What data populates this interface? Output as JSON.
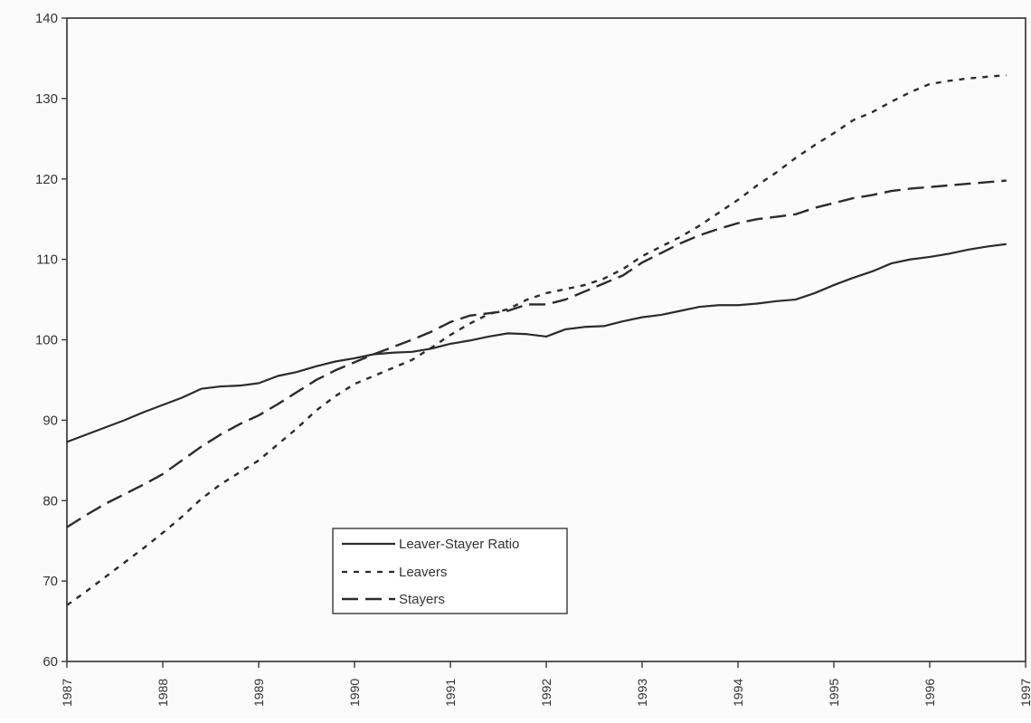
{
  "chart_data": {
    "type": "line",
    "title": "",
    "xlabel": "",
    "ylabel": "",
    "xlim": [
      1987,
      1997
    ],
    "ylim": [
      60,
      140
    ],
    "y_ticks": [
      60,
      70,
      80,
      90,
      100,
      110,
      120,
      130,
      140
    ],
    "x_ticks": [
      "1987",
      "1988",
      "1989",
      "1990",
      "1991",
      "1992",
      "1993",
      "1994",
      "1995",
      "1996",
      "1997"
    ],
    "x_tick_values": [
      1987,
      1988,
      1989,
      1990,
      1991,
      1992,
      1993,
      1994,
      1995,
      1996,
      1997
    ],
    "grid": false,
    "legend_position": "lower-center-left",
    "series": [
      {
        "name": "Leaver-Stayer Ratio",
        "style": "solid",
        "color": "#2b2b2b",
        "x": [
          1987.0,
          1987.2,
          1987.4,
          1987.6,
          1987.8,
          1988.0,
          1988.2,
          1988.4,
          1988.6,
          1988.8,
          1989.0,
          1989.2,
          1989.4,
          1989.6,
          1989.8,
          1990.0,
          1990.2,
          1990.4,
          1990.6,
          1990.8,
          1991.0,
          1991.2,
          1991.4,
          1991.6,
          1991.8,
          1992.0,
          1992.2,
          1992.4,
          1992.6,
          1992.8,
          1993.0,
          1993.2,
          1993.4,
          1993.6,
          1993.8,
          1994.0,
          1994.2,
          1994.4,
          1994.6,
          1994.8,
          1995.0,
          1995.2,
          1995.4,
          1995.6,
          1995.8,
          1996.0,
          1996.2,
          1996.4,
          1996.6,
          1996.8
        ],
        "values": [
          87.3,
          88.2,
          89.1,
          90.0,
          91.0,
          91.9,
          92.8,
          93.9,
          94.2,
          94.3,
          94.6,
          95.5,
          96.0,
          96.7,
          97.3,
          97.7,
          98.2,
          98.4,
          98.5,
          98.9,
          99.5,
          99.9,
          100.4,
          100.8,
          100.7,
          100.4,
          101.3,
          101.6,
          101.7,
          102.3,
          102.8,
          103.1,
          103.6,
          104.1,
          104.3,
          104.3,
          104.5,
          104.8,
          105.0,
          105.8,
          106.8,
          107.7,
          108.5,
          109.5,
          110.0,
          110.3,
          110.7,
          111.2,
          111.6,
          111.9
        ],
        "x_trim": [
          1996.95
        ]
      },
      {
        "name": "Leavers",
        "style": "dotted",
        "color": "#2b2b2b",
        "x": [
          1987.0,
          1987.2,
          1987.4,
          1987.6,
          1987.8,
          1988.0,
          1988.2,
          1988.4,
          1988.6,
          1988.8,
          1989.0,
          1989.2,
          1989.4,
          1989.6,
          1989.8,
          1990.0,
          1990.2,
          1990.4,
          1990.6,
          1990.8,
          1991.0,
          1991.2,
          1991.4,
          1991.6,
          1991.8,
          1992.0,
          1992.2,
          1992.4,
          1992.6,
          1992.8,
          1993.0,
          1993.2,
          1993.4,
          1993.6,
          1993.8,
          1994.0,
          1994.2,
          1994.4,
          1994.6,
          1994.8,
          1995.0,
          1995.2,
          1995.4,
          1995.6,
          1995.8,
          1996.0,
          1996.2,
          1996.4,
          1996.6,
          1996.8
        ],
        "values": [
          67.0,
          68.7,
          70.5,
          72.3,
          74.1,
          76.0,
          78.0,
          80.2,
          82.0,
          83.5,
          85.0,
          87.0,
          89.0,
          91.2,
          93.0,
          94.5,
          95.5,
          96.5,
          97.5,
          99.0,
          100.6,
          102.0,
          103.2,
          103.8,
          105.0,
          105.8,
          106.3,
          106.8,
          107.6,
          108.8,
          110.4,
          111.6,
          112.8,
          114.2,
          115.8,
          117.4,
          119.2,
          120.8,
          122.6,
          124.2,
          125.7,
          127.3,
          128.3,
          129.6,
          130.8,
          131.8,
          132.2,
          132.5,
          132.7,
          132.9
        ],
        "x_trim": [
          1996.85
        ]
      },
      {
        "name": "Stayers",
        "style": "dashed",
        "color": "#2b2b2b",
        "x": [
          1987.0,
          1987.2,
          1987.4,
          1987.6,
          1987.8,
          1988.0,
          1988.2,
          1988.4,
          1988.6,
          1988.8,
          1989.0,
          1989.2,
          1989.4,
          1989.6,
          1989.8,
          1990.0,
          1990.2,
          1990.4,
          1990.6,
          1990.8,
          1991.0,
          1991.2,
          1991.4,
          1991.6,
          1991.8,
          1992.0,
          1992.2,
          1992.4,
          1992.6,
          1992.8,
          1993.0,
          1993.2,
          1993.4,
          1993.6,
          1993.8,
          1994.0,
          1994.2,
          1994.4,
          1994.6,
          1994.8,
          1995.0,
          1995.2,
          1995.4,
          1995.6,
          1995.8,
          1996.0,
          1996.2,
          1996.4,
          1996.6,
          1996.8
        ],
        "values": [
          76.7,
          78.2,
          79.6,
          80.8,
          82.0,
          83.3,
          85.0,
          86.7,
          88.2,
          89.5,
          90.6,
          92.0,
          93.5,
          95.0,
          96.2,
          97.2,
          98.2,
          99.1,
          100.0,
          101.0,
          102.2,
          103.0,
          103.3,
          103.6,
          104.4,
          104.4,
          105.0,
          106.0,
          107.0,
          108.0,
          109.6,
          110.8,
          112.0,
          113.0,
          113.8,
          114.5,
          115.0,
          115.3,
          115.6,
          116.4,
          117.0,
          117.6,
          118.0,
          118.5,
          118.8,
          119.0,
          119.2,
          119.4,
          119.6,
          119.8
        ],
        "x_trim": [
          1996.95
        ]
      }
    ]
  }
}
